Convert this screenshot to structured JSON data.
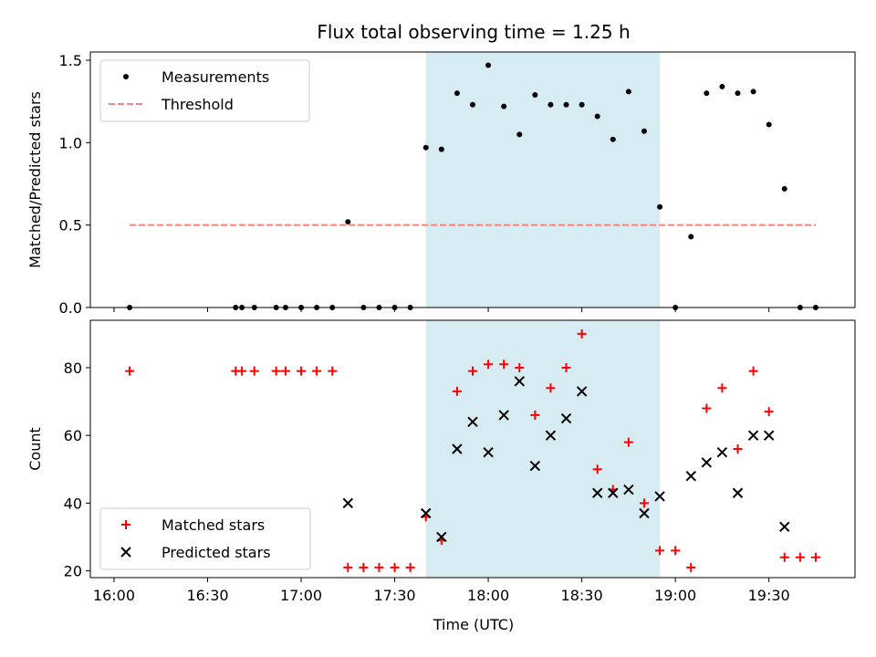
{
  "chart_data": {
    "type": "scatter",
    "title": "Flux total observing time = 1.25 h",
    "xlabel": "Time (UTC)",
    "x_ticks": [
      "16:00",
      "16:30",
      "17:00",
      "17:30",
      "18:00",
      "18:30",
      "19:00",
      "19:30"
    ],
    "shaded_interval": {
      "start": "17:40",
      "end": "18:55",
      "color": "#add8e6"
    },
    "panels": [
      {
        "ylabel": "Matched/Predicted stars",
        "ylim": [
          0,
          1.55
        ],
        "y_ticks": [
          "0.0",
          "0.5",
          "1.0",
          "1.5"
        ],
        "legend": {
          "placement": "upper-left",
          "entries": [
            "Measurements",
            "Threshold"
          ]
        },
        "series": [
          {
            "name": "Measurements",
            "marker": "dot",
            "color": "#000000",
            "points": [
              [
                "16:05",
                0
              ],
              [
                "16:39",
                0
              ],
              [
                "16:41",
                0
              ],
              [
                "16:45",
                0
              ],
              [
                "16:52",
                0
              ],
              [
                "16:55",
                0
              ],
              [
                "17:00",
                0
              ],
              [
                "17:05",
                0
              ],
              [
                "17:10",
                0
              ],
              [
                "17:15",
                0.52
              ],
              [
                "17:20",
                0
              ],
              [
                "17:25",
                0
              ],
              [
                "17:30",
                0
              ],
              [
                "17:35",
                0
              ],
              [
                "17:40",
                0.97
              ],
              [
                "17:45",
                0.96
              ],
              [
                "17:50",
                1.3
              ],
              [
                "17:55",
                1.23
              ],
              [
                "18:00",
                1.47
              ],
              [
                "18:05",
                1.22
              ],
              [
                "18:10",
                1.05
              ],
              [
                "18:15",
                1.29
              ],
              [
                "18:20",
                1.23
              ],
              [
                "18:25",
                1.23
              ],
              [
                "18:30",
                1.23
              ],
              [
                "18:35",
                1.16
              ],
              [
                "18:40",
                1.02
              ],
              [
                "18:45",
                1.31
              ],
              [
                "18:50",
                1.07
              ],
              [
                "18:55",
                0.61
              ],
              [
                "19:00",
                0
              ],
              [
                "19:05",
                0.43
              ],
              [
                "19:10",
                1.3
              ],
              [
                "19:15",
                1.34
              ],
              [
                "19:20",
                1.3
              ],
              [
                "19:25",
                1.31
              ],
              [
                "19:30",
                1.11
              ],
              [
                "19:35",
                0.72
              ],
              [
                "19:40",
                0
              ],
              [
                "19:45",
                0
              ]
            ]
          },
          {
            "name": "Threshold",
            "style": "dashed",
            "color": "#ff7f7f",
            "points": [
              [
                "16:05",
                0.5
              ],
              [
                "19:45",
                0.5
              ]
            ]
          }
        ]
      },
      {
        "ylabel": "Count",
        "ylim": [
          18,
          94
        ],
        "y_ticks": [
          "20",
          "40",
          "60",
          "80"
        ],
        "legend": {
          "placement": "lower-left",
          "entries": [
            "Matched stars",
            "Predicted stars"
          ]
        },
        "series": [
          {
            "name": "Matched stars",
            "marker": "plus",
            "color": "#ff0000",
            "points": [
              [
                "16:05",
                79
              ],
              [
                "16:39",
                79
              ],
              [
                "16:41",
                79
              ],
              [
                "16:45",
                79
              ],
              [
                "16:52",
                79
              ],
              [
                "16:55",
                79
              ],
              [
                "17:00",
                79
              ],
              [
                "17:05",
                79
              ],
              [
                "17:10",
                79
              ],
              [
                "17:15",
                21
              ],
              [
                "17:20",
                21
              ],
              [
                "17:25",
                21
              ],
              [
                "17:30",
                21
              ],
              [
                "17:35",
                21
              ],
              [
                "17:40",
                36
              ],
              [
                "17:45",
                29
              ],
              [
                "17:50",
                73
              ],
              [
                "17:55",
                79
              ],
              [
                "18:00",
                81
              ],
              [
                "18:05",
                81
              ],
              [
                "18:10",
                80
              ],
              [
                "18:15",
                66
              ],
              [
                "18:20",
                74
              ],
              [
                "18:25",
                80
              ],
              [
                "18:30",
                90
              ],
              [
                "18:35",
                50
              ],
              [
                "18:40",
                44
              ],
              [
                "18:45",
                58
              ],
              [
                "18:50",
                40
              ],
              [
                "18:55",
                26
              ],
              [
                "19:00",
                26
              ],
              [
                "19:05",
                21
              ],
              [
                "19:10",
                68
              ],
              [
                "19:15",
                74
              ],
              [
                "19:20",
                56
              ],
              [
                "19:25",
                79
              ],
              [
                "19:30",
                67
              ],
              [
                "19:35",
                24
              ],
              [
                "19:40",
                24
              ],
              [
                "19:45",
                24
              ]
            ]
          },
          {
            "name": "Predicted stars",
            "marker": "x",
            "color": "#000000",
            "points": [
              [
                "17:15",
                40
              ],
              [
                "17:40",
                37
              ],
              [
                "17:45",
                30
              ],
              [
                "17:50",
                56
              ],
              [
                "17:55",
                64
              ],
              [
                "18:00",
                55
              ],
              [
                "18:05",
                66
              ],
              [
                "18:10",
                76
              ],
              [
                "18:15",
                51
              ],
              [
                "18:20",
                60
              ],
              [
                "18:25",
                65
              ],
              [
                "18:30",
                73
              ],
              [
                "18:35",
                43
              ],
              [
                "18:40",
                43
              ],
              [
                "18:45",
                44
              ],
              [
                "18:50",
                37
              ],
              [
                "18:55",
                42
              ],
              [
                "19:05",
                48
              ],
              [
                "19:10",
                52
              ],
              [
                "19:15",
                55
              ],
              [
                "19:20",
                43
              ],
              [
                "19:25",
                60
              ],
              [
                "19:30",
                60
              ],
              [
                "19:35",
                33
              ]
            ]
          }
        ]
      }
    ]
  }
}
